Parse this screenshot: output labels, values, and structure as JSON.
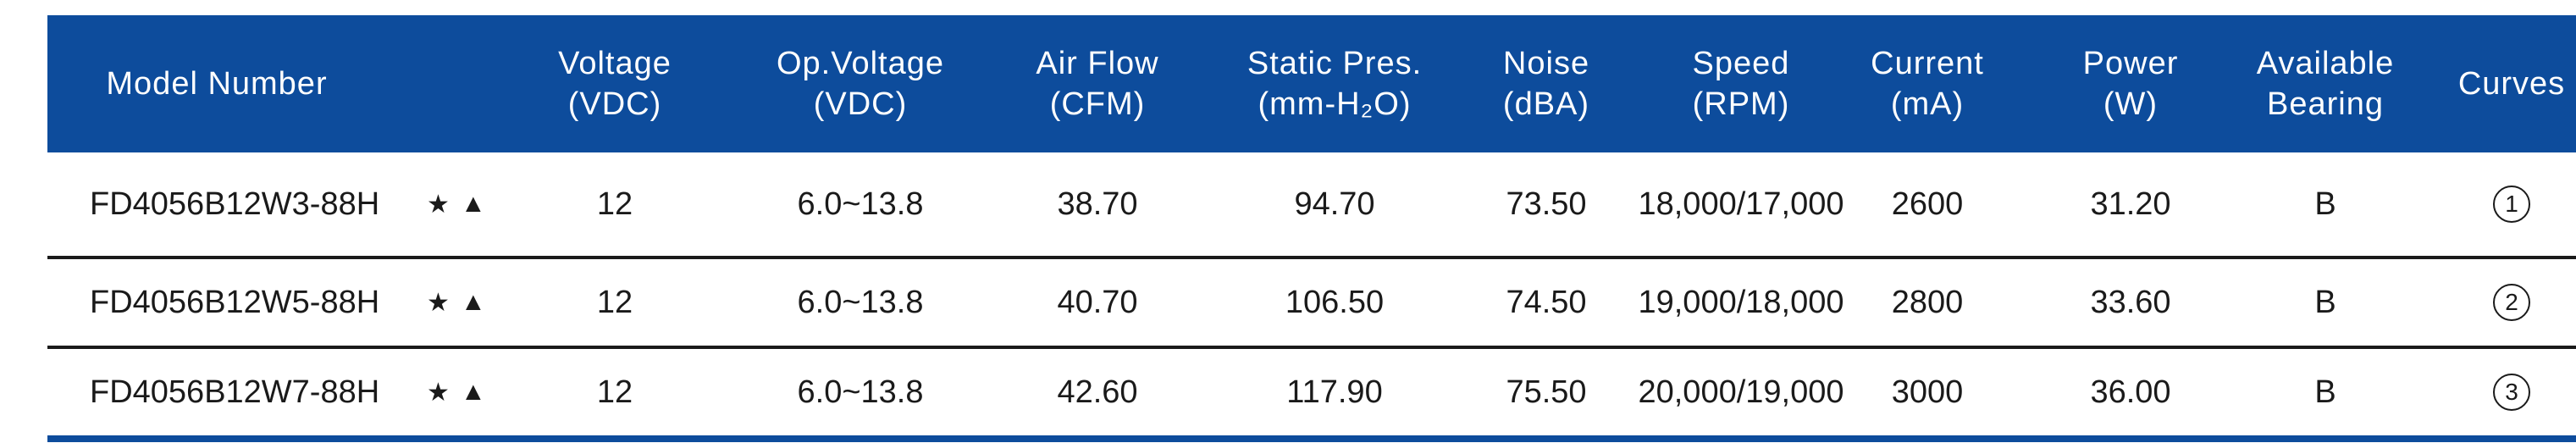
{
  "colors": {
    "header_bg": "#0d4c9c",
    "header_text": "#ffffff",
    "body_text": "#1a1a1a",
    "bottom_rule": "#0d4c9c"
  },
  "headers": {
    "model": [
      "Model Number"
    ],
    "voltage": [
      "Voltage",
      "(VDC)"
    ],
    "op_voltage": [
      "Op.Voltage",
      "(VDC)"
    ],
    "airflow": [
      "Air Flow",
      "(CFM)"
    ],
    "static_pres": [
      "Static Pres.",
      "(mm-H₂O)"
    ],
    "noise": [
      "Noise",
      "(dBA)"
    ],
    "speed": [
      "Speed",
      "(RPM)"
    ],
    "current": [
      "Current",
      "(mA)"
    ],
    "power": [
      "Power",
      "(W)"
    ],
    "bearing": [
      "Available",
      "Bearing"
    ],
    "curves": [
      "Curves"
    ]
  },
  "rows": [
    {
      "model": "FD4056B12W3-88H",
      "star": "★",
      "triangle": "▲",
      "voltage": "12",
      "op_voltage": "6.0~13.8",
      "airflow": "38.70",
      "static_pres": "94.70",
      "noise": "73.50",
      "speed": "18,000/17,000",
      "current": "2600",
      "power": "31.20",
      "bearing": "B",
      "curve": "1"
    },
    {
      "model": "FD4056B12W5-88H",
      "star": "★",
      "triangle": "▲",
      "voltage": "12",
      "op_voltage": "6.0~13.8",
      "airflow": "40.70",
      "static_pres": "106.50",
      "noise": "74.50",
      "speed": "19,000/18,000",
      "current": "2800",
      "power": "33.60",
      "bearing": "B",
      "curve": "2"
    },
    {
      "model": "FD4056B12W7-88H",
      "star": "★",
      "triangle": "▲",
      "voltage": "12",
      "op_voltage": "6.0~13.8",
      "airflow": "42.60",
      "static_pres": "117.90",
      "noise": "75.50",
      "speed": "20,000/19,000",
      "current": "3000",
      "power": "36.00",
      "bearing": "B",
      "curve": "3"
    }
  ]
}
